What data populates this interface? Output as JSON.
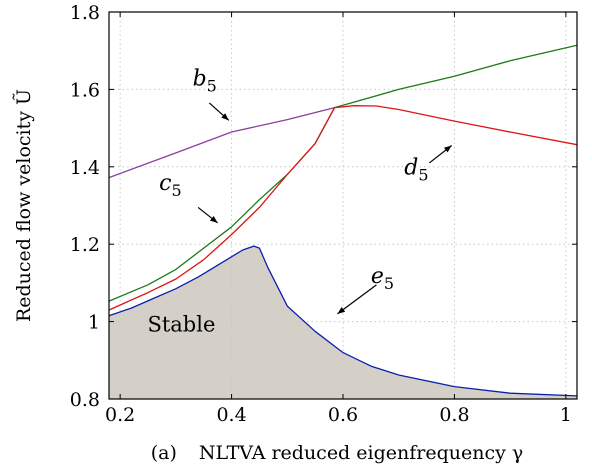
{
  "chart_data": {
    "type": "line",
    "title": "",
    "xlabel": "NLTVA reduced eigenfrequency γ",
    "xlabel_prefix": "(a)",
    "ylabel": "Reduced flow velocity Ũ",
    "xlim": [
      0.18,
      1.02
    ],
    "ylim": [
      0.8,
      1.8
    ],
    "xticks": [
      0.2,
      0.4,
      0.6,
      0.8,
      1
    ],
    "xtick_labels": [
      "0.2",
      "0.4",
      "0.6",
      "0.8",
      "1"
    ],
    "yticks": [
      0.8,
      1,
      1.2,
      1.4,
      1.6,
      1.8
    ],
    "ytick_labels": [
      "0.8",
      "1",
      "1.2",
      "1.4",
      "1.6",
      "1.8"
    ],
    "grid": true,
    "colors": {
      "b5": "#8a3fa0",
      "green": "#1a7a1a",
      "c5": "#1a7a1a",
      "d5": "#e01414",
      "e5": "#0a1fb0",
      "stable_fill": "#d4d0c8"
    },
    "series": [
      {
        "key": "b5",
        "x": [
          0.18,
          0.3,
          0.4,
          0.5,
          0.585
        ],
        "y": [
          1.372,
          1.436,
          1.49,
          1.522,
          1.553
        ]
      },
      {
        "key": "green",
        "x": [
          0.585,
          0.7,
          0.8,
          0.9,
          1.02
        ],
        "y": [
          1.553,
          1.6,
          1.634,
          1.674,
          1.714
        ]
      },
      {
        "key": "c5",
        "x": [
          0.18,
          0.25,
          0.3,
          0.35,
          0.4,
          0.45,
          0.5,
          0.55,
          0.585
        ],
        "y": [
          1.053,
          1.095,
          1.135,
          1.19,
          1.245,
          1.315,
          1.38,
          1.46,
          1.553
        ]
      },
      {
        "key": "d5",
        "x": [
          0.18,
          0.25,
          0.3,
          0.35,
          0.4,
          0.45,
          0.5,
          0.55,
          0.585,
          0.62,
          0.66,
          0.7,
          0.8,
          0.9,
          1.02
        ],
        "y": [
          1.03,
          1.075,
          1.11,
          1.16,
          1.225,
          1.295,
          1.38,
          1.46,
          1.553,
          1.558,
          1.557,
          1.548,
          1.518,
          1.49,
          1.457
        ]
      },
      {
        "key": "e5",
        "x": [
          0.18,
          0.22,
          0.26,
          0.3,
          0.34,
          0.38,
          0.42,
          0.44,
          0.45,
          0.465,
          0.5,
          0.55,
          0.6,
          0.65,
          0.7,
          0.8,
          0.9,
          1.02
        ],
        "y": [
          1.015,
          1.035,
          1.06,
          1.085,
          1.115,
          1.15,
          1.185,
          1.195,
          1.19,
          1.14,
          1.04,
          0.975,
          0.92,
          0.885,
          0.862,
          0.832,
          0.815,
          0.808
        ]
      }
    ],
    "annotations": [
      {
        "key": "b5",
        "base": "b",
        "sub": "5",
        "text_at": [
          0.33,
          1.61
        ],
        "arrow_from": [
          0.36,
          1.565
        ],
        "arrow_to": [
          0.395,
          1.52
        ]
      },
      {
        "key": "c5",
        "base": "c",
        "sub": "5",
        "text_at": [
          0.27,
          1.34
        ],
        "arrow_from": [
          0.34,
          1.295
        ],
        "arrow_to": [
          0.375,
          1.255
        ]
      },
      {
        "key": "d5",
        "base": "d",
        "sub": "5",
        "text_at": [
          0.71,
          1.38
        ],
        "arrow_from": [
          0.755,
          1.41
        ],
        "arrow_to": [
          0.795,
          1.455
        ]
      },
      {
        "key": "e5",
        "base": "e",
        "sub": "5",
        "text_at": [
          0.65,
          1.1
        ],
        "arrow_from": [
          0.66,
          1.095
        ],
        "arrow_to": [
          0.59,
          1.02
        ]
      }
    ],
    "region_label": "Stable",
    "region_label_at": [
      0.31,
      0.975
    ]
  }
}
